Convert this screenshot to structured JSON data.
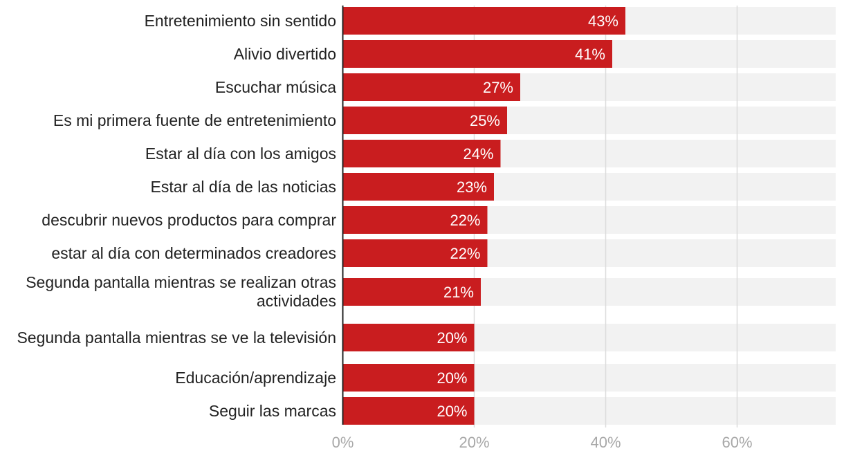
{
  "chart_data": {
    "type": "bar",
    "orientation": "horizontal",
    "title": "",
    "xlabel": "",
    "ylabel": "",
    "xlim": [
      0,
      75
    ],
    "grid": true,
    "categories": [
      "Entretenimiento sin sentido",
      "Alivio divertido",
      "Escuchar música",
      "Es mi primera fuente de entretenimiento",
      "Estar al día con los amigos",
      "Estar al día de las noticias",
      "descubrir nuevos productos para comprar",
      "estar al día con determinados creadores",
      "Segunda pantalla mientras se realizan otras actividades",
      "Segunda pantalla mientras se ve la televisión",
      "Educación/aprendizaje",
      "Seguir las marcas"
    ],
    "values": [
      43,
      41,
      27,
      25,
      24,
      23,
      22,
      22,
      21,
      20,
      20,
      20
    ],
    "value_labels": [
      "43%",
      "41%",
      "27%",
      "25%",
      "24%",
      "23%",
      "22%",
      "22%",
      "21%",
      "20%",
      "20%",
      "20%"
    ],
    "ticks": [
      0,
      20,
      40,
      60
    ],
    "tick_labels": [
      "0%",
      "20%",
      "40%",
      "60%"
    ],
    "colors": {
      "bar": "#c91d1f",
      "track": "#f2f2f2",
      "grid": "#dcdcdc",
      "axis": "#222222",
      "value_label": "#ffffff"
    }
  }
}
